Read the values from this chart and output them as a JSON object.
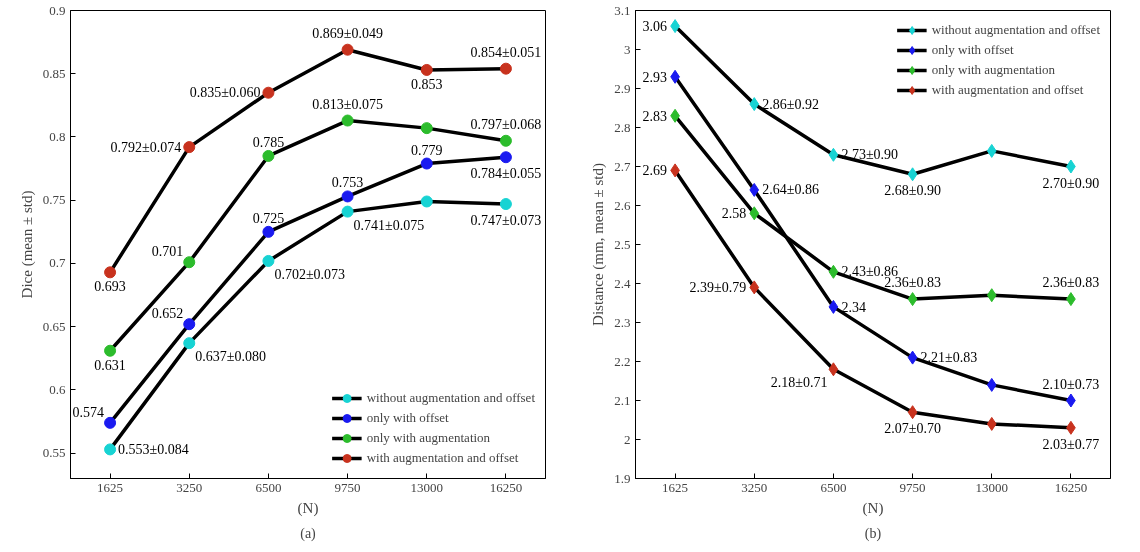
{
  "chart_data": [
    {
      "type": "line",
      "ylabel": "Dice (mean ± std)",
      "xlabel": "(N)",
      "categories": [
        "1625",
        "3250",
        "6500",
        "9750",
        "13000",
        "16250"
      ],
      "ylim": [
        0.53,
        0.9
      ],
      "yticks": [
        {
          "value": 0.55,
          "label": "0.55"
        },
        {
          "value": 0.6,
          "label": "0.6"
        },
        {
          "value": 0.65,
          "label": "0.65"
        },
        {
          "value": 0.7,
          "label": "0.7"
        },
        {
          "value": 0.75,
          "label": "0.75"
        },
        {
          "value": 0.8,
          "label": "0.8"
        },
        {
          "value": 0.85,
          "label": "0.85"
        },
        {
          "value": 0.9,
          "label": "0.9"
        }
      ],
      "marker": "circle",
      "grid": false,
      "legend": "bottom right",
      "annotations": [
        "(a)"
      ],
      "series": [
        {
          "name": "without augmentation and offset",
          "color": "#17d3d3",
          "values": [
            0.553,
            0.637,
            0.702,
            0.741,
            0.749,
            0.747
          ],
          "value_labels": [
            "0.553±0.084",
            "0.637±0.080",
            "0.702±0.073",
            "0.741±0.075",
            null,
            "0.747±0.073"
          ]
        },
        {
          "name": "only with offset",
          "color": "#1a1af0",
          "values": [
            0.574,
            0.652,
            0.725,
            0.753,
            0.779,
            0.784
          ],
          "value_labels": [
            "0.574",
            "0.652",
            "0.725",
            "0.753",
            "0.779",
            "0.784±0.055"
          ]
        },
        {
          "name": "only with augmentation",
          "color": "#2cbc2c",
          "values": [
            0.631,
            0.701,
            0.785,
            0.813,
            0.807,
            0.797
          ],
          "value_labels": [
            "0.631",
            "0.701",
            "0.785",
            "0.813±0.075",
            null,
            "0.797±0.068"
          ]
        },
        {
          "name": "with augmentation and offset",
          "color": "#c8321e",
          "values": [
            0.693,
            0.792,
            0.835,
            0.869,
            0.853,
            0.854
          ],
          "value_labels": [
            "0.693",
            "0.792±0.074",
            "0.835±0.060",
            "0.869±0.049",
            "0.853",
            "0.854±0.051"
          ]
        }
      ]
    },
    {
      "type": "line",
      "ylabel": "Distance (mm, mean ± std)",
      "xlabel": "(N)",
      "categories": [
        "1625",
        "3250",
        "6500",
        "9750",
        "13000",
        "16250"
      ],
      "ylim": [
        1.9,
        3.1
      ],
      "yticks": [
        {
          "value": 1.9,
          "label": "1.9"
        },
        {
          "value": 2,
          "label": "2"
        },
        {
          "value": 2.1,
          "label": "2.1"
        },
        {
          "value": 2.2,
          "label": "2.2"
        },
        {
          "value": 2.3,
          "label": "2.3"
        },
        {
          "value": 2.4,
          "label": "2.4"
        },
        {
          "value": 2.5,
          "label": "2.5"
        },
        {
          "value": 2.6,
          "label": "2.6"
        },
        {
          "value": 2.7,
          "label": "2.7"
        },
        {
          "value": 2.8,
          "label": "2.8"
        },
        {
          "value": 2.9,
          "label": "2.9"
        },
        {
          "value": 3,
          "label": "3"
        },
        {
          "value": 3.1,
          "label": "3.1"
        }
      ],
      "marker": "diamond",
      "grid": false,
      "legend": "top right",
      "annotations": [
        "(b)"
      ],
      "series": [
        {
          "name": "without augmentation and offset",
          "color": "#17d3d3",
          "values": [
            3.06,
            2.86,
            2.73,
            2.68,
            2.74,
            2.7
          ],
          "value_labels": [
            "3.06",
            "2.86±0.92",
            "2.73±0.90",
            "2.68±0.90",
            null,
            "2.70±0.90"
          ]
        },
        {
          "name": "only with offset",
          "color": "#1a1af0",
          "values": [
            2.93,
            2.64,
            2.34,
            2.21,
            2.14,
            2.1
          ],
          "value_labels": [
            "2.93",
            "2.64±0.86",
            "2.34",
            "2.21±0.83",
            null,
            "2.10±0.73"
          ]
        },
        {
          "name": "only with augmentation",
          "color": "#2cbc2c",
          "values": [
            2.83,
            2.58,
            2.43,
            2.36,
            2.37,
            2.36
          ],
          "value_labels": [
            "2.83",
            "2.58",
            "2.43±0.86",
            "2.36±0.83",
            null,
            "2.36±0.83"
          ]
        },
        {
          "name": "with augmentation and offset",
          "color": "#c8321e",
          "values": [
            2.69,
            2.39,
            2.18,
            2.07,
            2.04,
            2.03
          ],
          "value_labels": [
            "2.69",
            "2.39±0.79",
            "2.18±0.71",
            "2.07±0.70",
            null,
            "2.03±0.77"
          ]
        }
      ]
    }
  ]
}
